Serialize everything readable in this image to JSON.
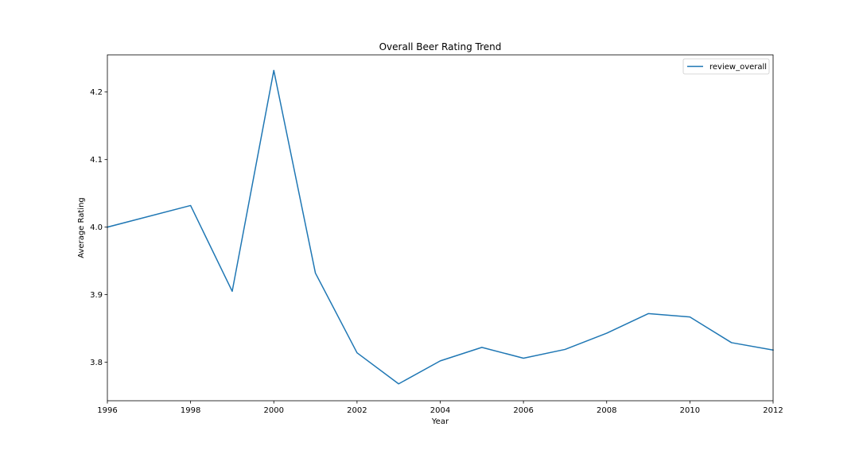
{
  "chart_data": {
    "type": "line",
    "title": "Overall Beer Rating Trend",
    "xlabel": "Year",
    "ylabel": "Average Rating",
    "xlim": [
      1996,
      2012
    ],
    "ylim": [
      3.743,
      4.255
    ],
    "xticks": [
      1996,
      1998,
      2000,
      2002,
      2004,
      2006,
      2008,
      2010,
      2012
    ],
    "yticks": [
      3.8,
      3.9,
      4.0,
      4.1,
      4.2
    ],
    "ytick_labels": [
      "3.8",
      "3.9",
      "4.0",
      "4.1",
      "4.2"
    ],
    "grid": false,
    "legend_position": "top-right",
    "series": [
      {
        "name": "review_overall",
        "color": "#1f77b4",
        "x": [
          1996,
          1998,
          1999,
          2000,
          2001,
          2002,
          2003,
          2004,
          2005,
          2006,
          2007,
          2008,
          2009,
          2010,
          2011,
          2012
        ],
        "y": [
          4.0,
          4.032,
          3.905,
          4.232,
          3.932,
          3.814,
          3.768,
          3.802,
          3.822,
          3.806,
          3.819,
          3.843,
          3.872,
          3.867,
          3.829,
          3.818
        ]
      }
    ]
  }
}
